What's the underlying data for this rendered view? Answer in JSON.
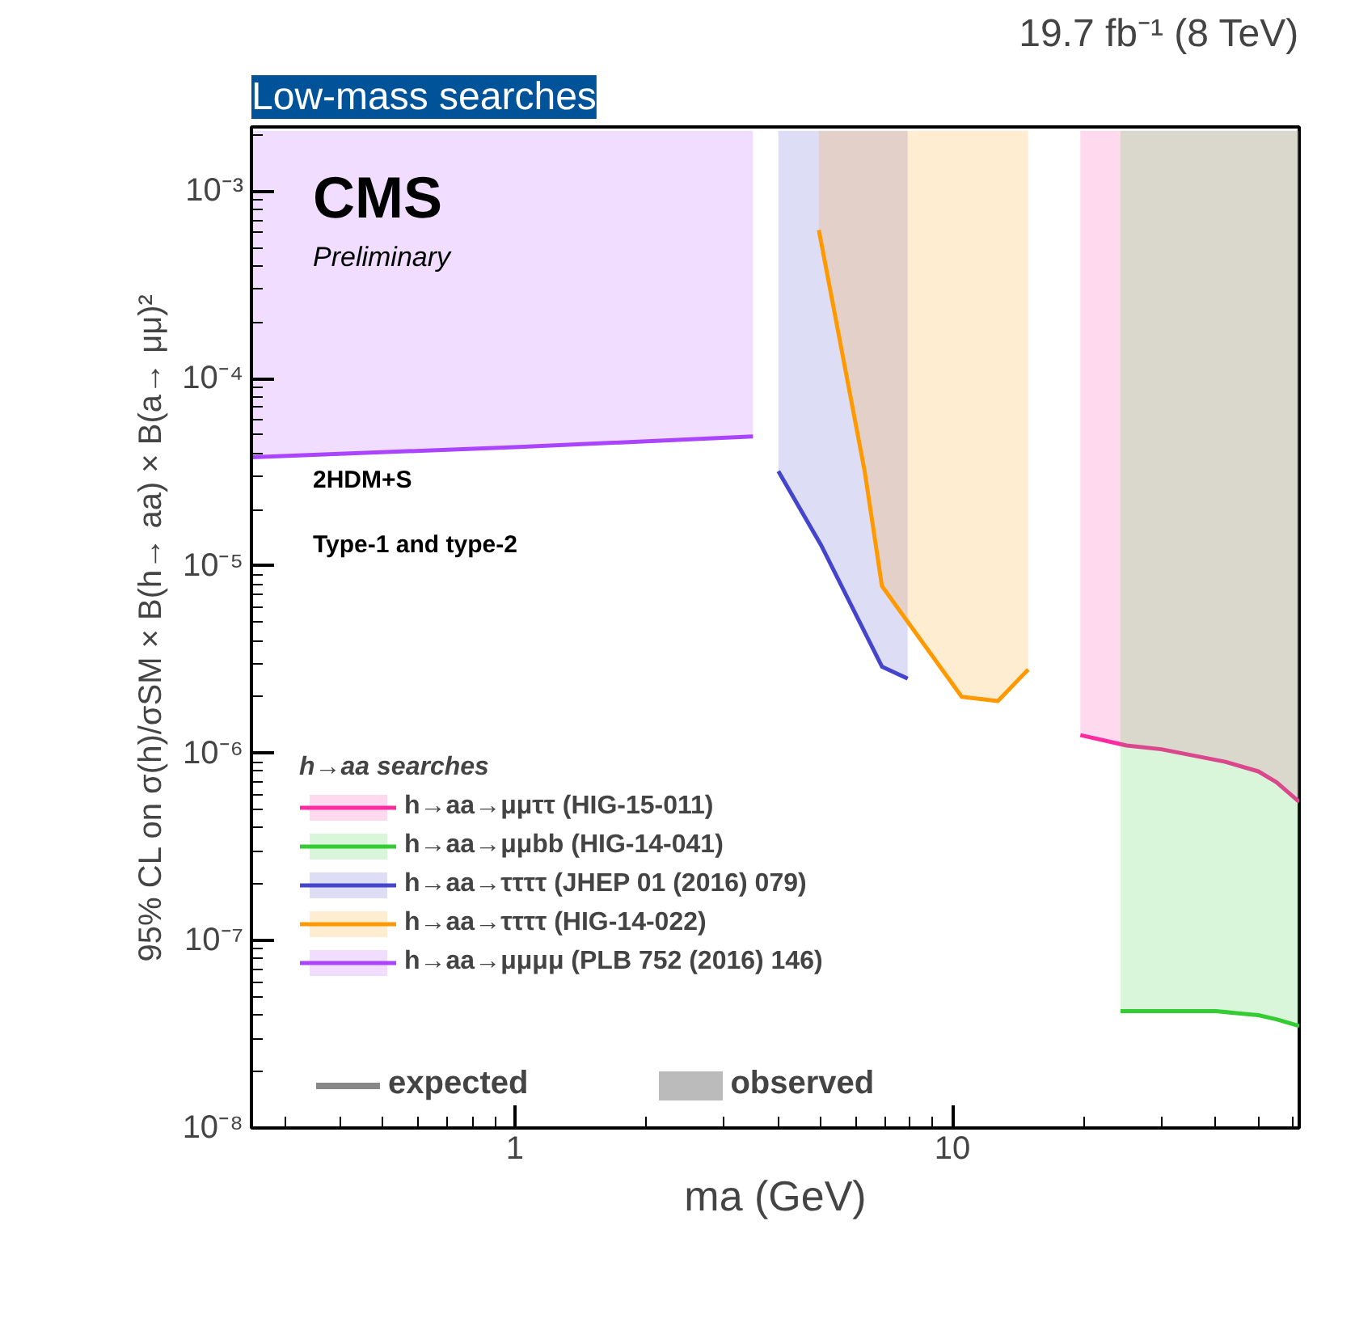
{
  "chart_data": {
    "type": "line",
    "title": "19.7 fb⁻¹ (8 TeV)",
    "xlabel": "ma (GeV)",
    "ylabel": "95% CL on σ(h)/σSM × B(h→ aa) × B(a→ μμ)²",
    "legend_title": "h→aa searches",
    "log": "xy",
    "legend": "left",
    "grid": false,
    "xlim": [
      0.25,
      62
    ],
    "ylim": [
      1e-08,
      0.0022
    ],
    "xticks": [
      1,
      10
    ],
    "yticks": [
      {
        "value": 1e-08,
        "label": "10⁻⁸"
      },
      {
        "value": 1e-07,
        "label": "10⁻⁷"
      },
      {
        "value": 1e-06,
        "label": "10⁻⁶"
      },
      {
        "value": 1e-05,
        "label": "10⁻⁵"
      },
      {
        "value": 0.0001,
        "label": "10⁻⁴"
      },
      {
        "value": 0.001,
        "label": "10⁻³"
      }
    ],
    "series": [
      {
        "name": "h→aa→μμττ (HIG-15-011)",
        "color": "#ff2aa0",
        "x": [
          19.6,
          25,
          30,
          42,
          50,
          55,
          62
        ],
        "values": [
          1.25e-06,
          1.1e-06,
          1.05e-06,
          9e-07,
          8e-07,
          7e-07,
          5.5e-07
        ],
        "lower": [
          1.25e-06,
          1.1e-06,
          1.05e-06,
          9e-07,
          8e-07,
          7e-07,
          5.5e-07
        ],
        "upper": [
          0.0021,
          0.0021,
          0.0021,
          0.0021,
          0.0021,
          0.0021,
          0.0021
        ]
      },
      {
        "name": "h→aa→μμbb (HIG-14-041)",
        "color": "#33cc33",
        "x": [
          24.2,
          30,
          40,
          50,
          55,
          62
        ],
        "values": [
          4.2e-08,
          4.2e-08,
          4.2e-08,
          4e-08,
          3.8e-08,
          3.5e-08
        ],
        "lower": [
          4.2e-08,
          4.2e-08,
          4.2e-08,
          4e-08,
          3.8e-08,
          3.5e-08
        ],
        "upper": [
          0.0021,
          0.0021,
          0.0021,
          0.0021,
          0.0021,
          0.0021
        ]
      },
      {
        "name": "h→aa→ττττ (JHEP 01 (2016) 079)",
        "color": "#4444cc",
        "x": [
          4.0,
          5.0,
          6.9,
          7.9
        ],
        "values": [
          3.2e-05,
          1.3e-05,
          2.9e-06,
          2.5e-06
        ],
        "lower": [
          3.2e-05,
          1.3e-05,
          2.9e-06,
          2.5e-06
        ],
        "upper": [
          0.0021,
          0.0021,
          0.0021,
          0.0021
        ]
      },
      {
        "name": "h→aa→ττττ (HIG-14-022)",
        "color": "#ff9900",
        "x": [
          4.95,
          6.3,
          6.9,
          10.5,
          12.7,
          14.9
        ],
        "values": [
          0.00062,
          3.2e-05,
          7.8e-06,
          2e-06,
          1.9e-06,
          2.8e-06
        ],
        "lower": [
          0.00062,
          3.2e-05,
          7.8e-06,
          2e-06,
          1.9e-06,
          2.8e-06
        ],
        "upper": [
          0.0021,
          0.0021,
          0.0021,
          0.0021,
          0.0021,
          0.0021
        ]
      },
      {
        "name": "h→aa→μμμμ (PLB 752 (2016) 146)",
        "color": "#aa44ff",
        "x": [
          0.25,
          1,
          3.5
        ],
        "values": [
          3.8e-05,
          4.3e-05,
          4.9e-05
        ],
        "lower": [
          3.8e-05,
          4.3e-05,
          4.9e-05
        ],
        "upper": [
          0.0021,
          0.0021,
          0.0021
        ]
      }
    ],
    "annotations": [
      "CMS",
      "Preliminary",
      "2HDM+S",
      "Type-1 and type-2",
      "expected",
      "observed",
      "Low-mass searches"
    ]
  }
}
